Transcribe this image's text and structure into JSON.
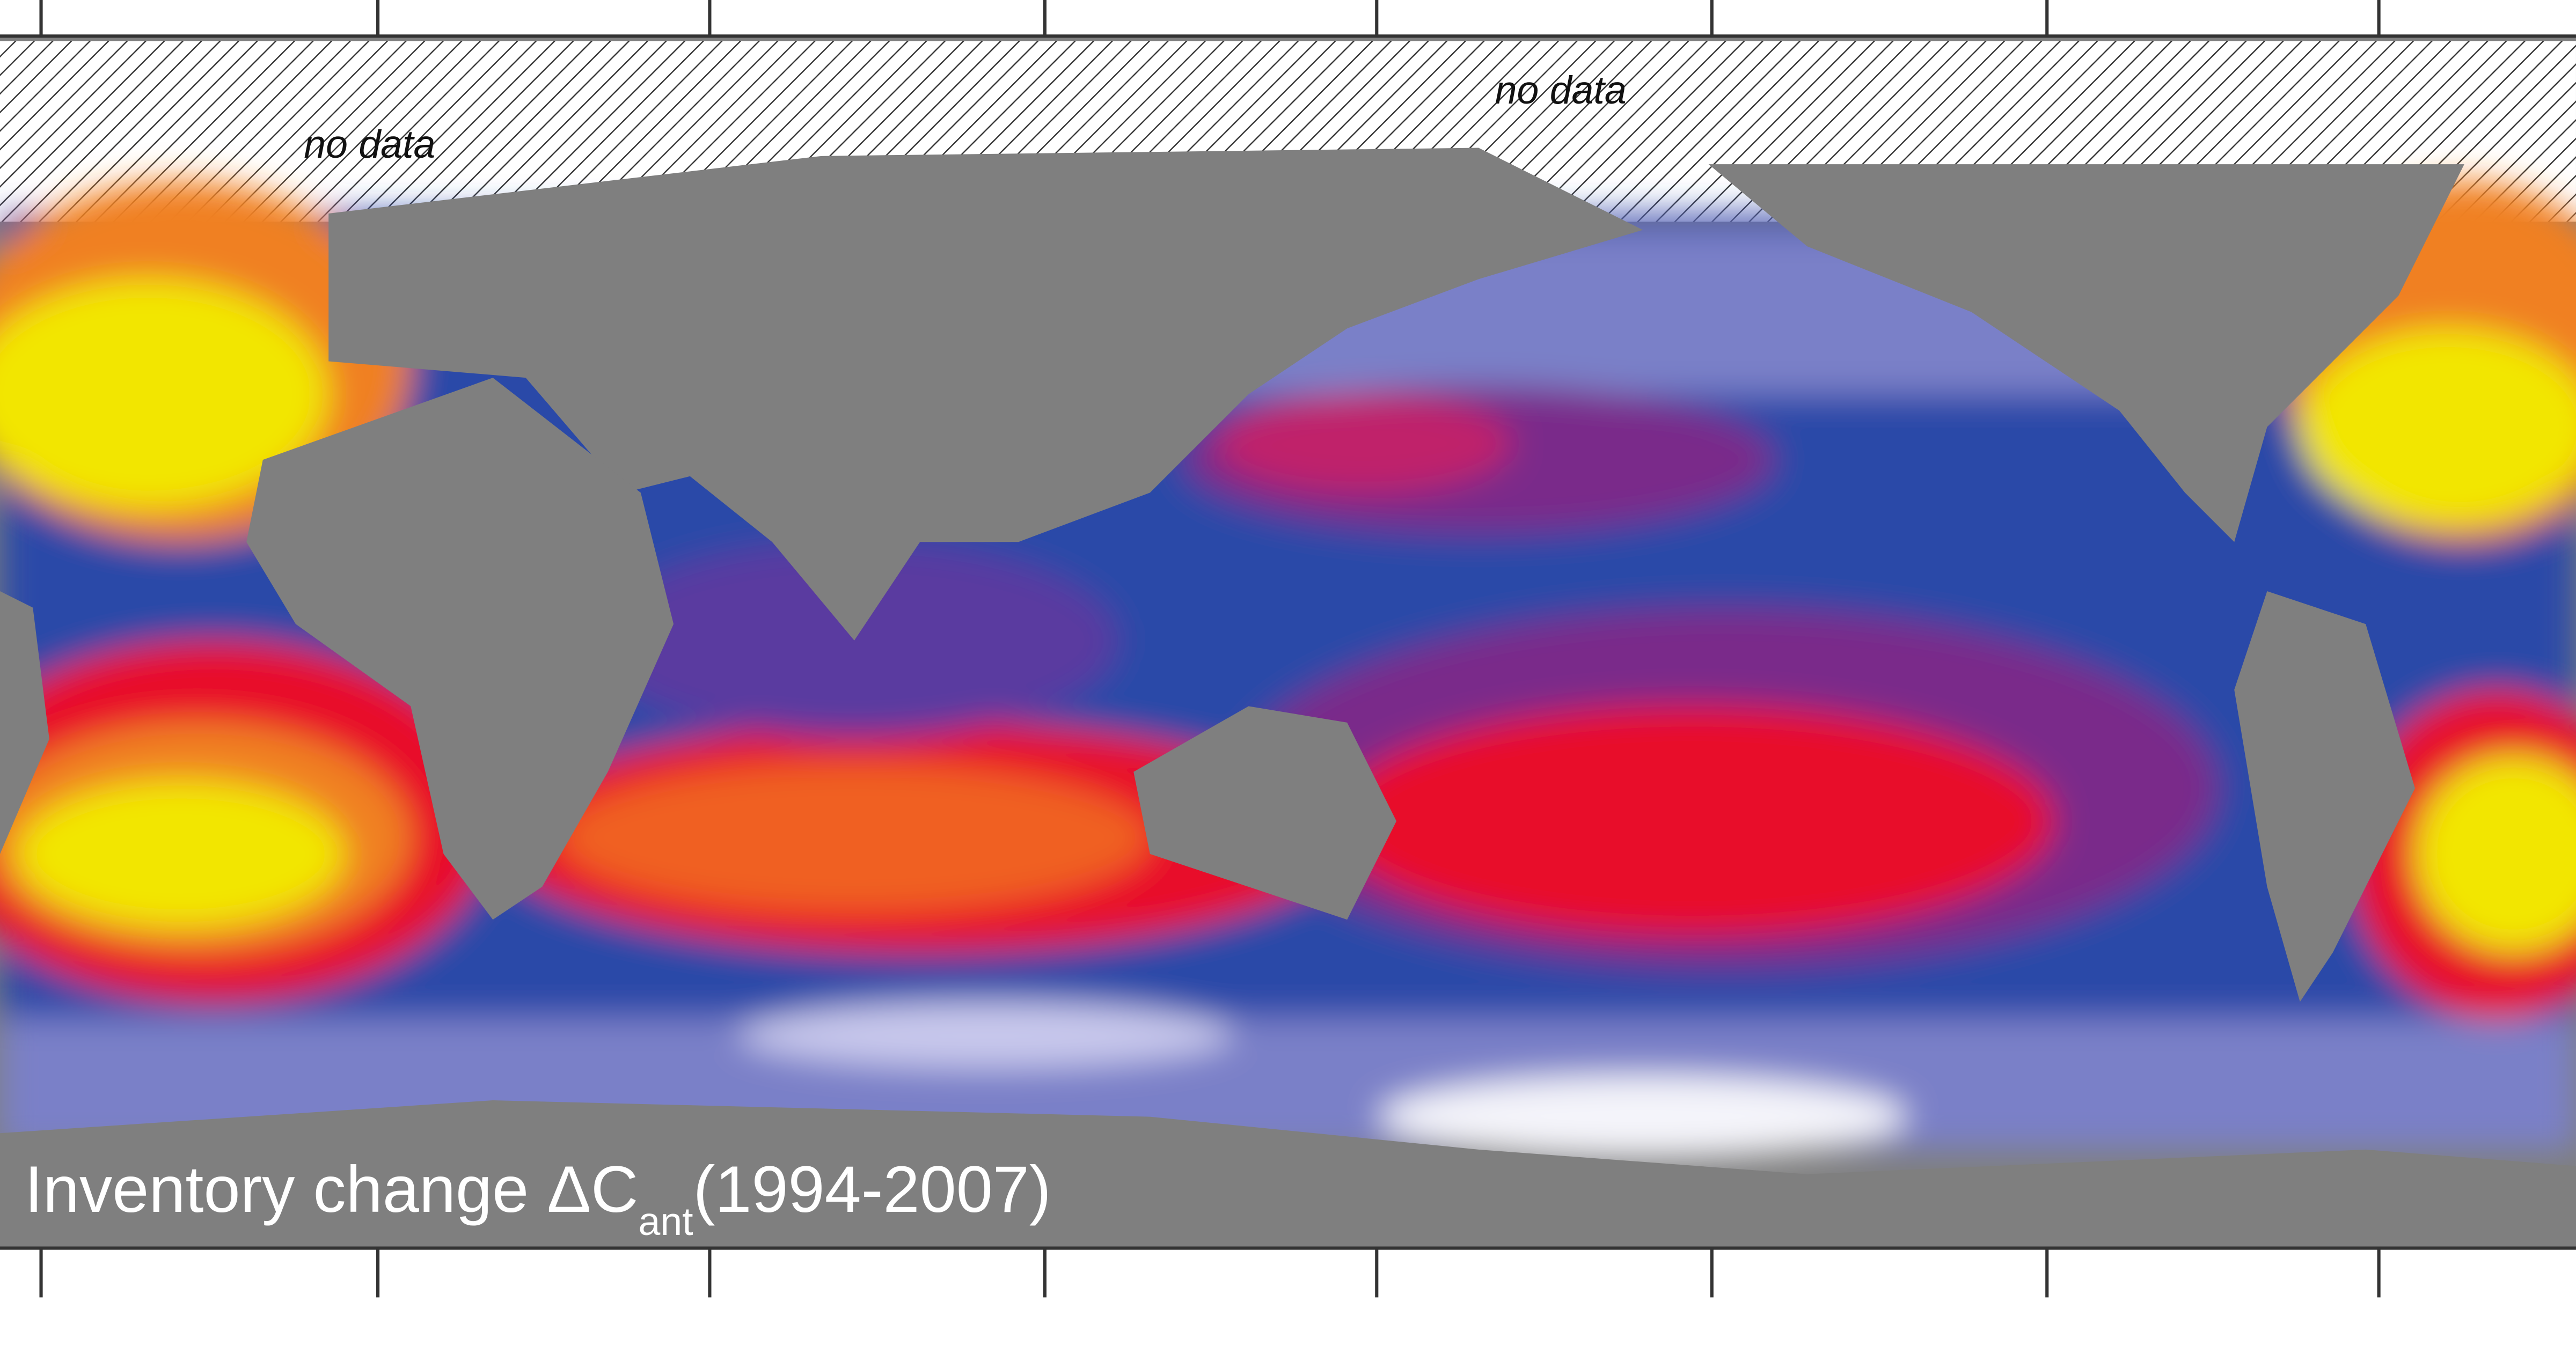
{
  "annotations": [
    {
      "text": "no data"
    },
    {
      "text": "no data"
    }
  ],
  "title": {
    "main": "Inventory change ΔC",
    "subscript": "ant",
    "period": "(1994-2007)"
  }
}
